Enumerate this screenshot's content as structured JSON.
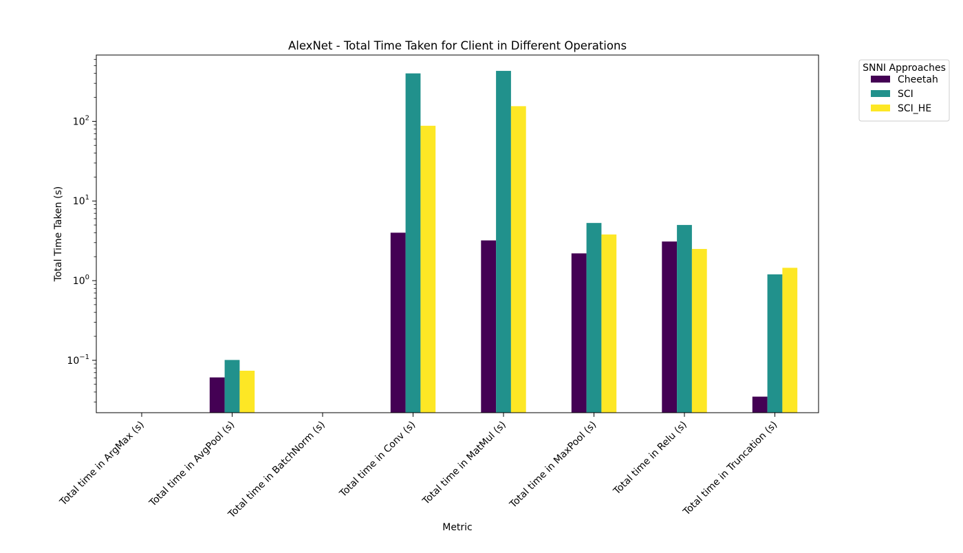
{
  "chart_data": {
    "type": "bar",
    "title": "AlexNet - Total Time Taken for Client in Different Operations",
    "xlabel": "Metric",
    "ylabel": "Total Time Taken (s)",
    "yscale": "log",
    "ylim": [
      0.022,
      680
    ],
    "yticks": [
      {
        "value": 0.1,
        "base": "10",
        "exp": "−1"
      },
      {
        "value": 1,
        "base": "10",
        "exp": "0"
      },
      {
        "value": 10,
        "base": "10",
        "exp": "1"
      },
      {
        "value": 100,
        "base": "10",
        "exp": "2"
      }
    ],
    "grid": false,
    "legend": {
      "title": "SNNI Approaches",
      "position": "outside-top-right"
    },
    "categories": [
      "Total time in ArgMax (s)",
      "Total time in AvgPool (s)",
      "Total time in BatchNorm (s)",
      "Total time in Conv (s)",
      "Total time in MatMul (s)",
      "Total time in MaxPool (s)",
      "Total time in Relu (s)",
      "Total time in Truncation (s)"
    ],
    "series": [
      {
        "name": "Cheetah",
        "color": "#440154",
        "values": [
          null,
          0.061,
          null,
          4.0,
          3.2,
          2.2,
          3.1,
          0.035
        ]
      },
      {
        "name": "SCI",
        "color": "#21918c",
        "values": [
          null,
          0.101,
          null,
          400,
          430,
          5.3,
          5.0,
          1.2
        ]
      },
      {
        "name": "SCI_HE",
        "color": "#fde725",
        "values": [
          null,
          0.074,
          null,
          88,
          155,
          3.8,
          2.5,
          1.45
        ]
      }
    ]
  }
}
